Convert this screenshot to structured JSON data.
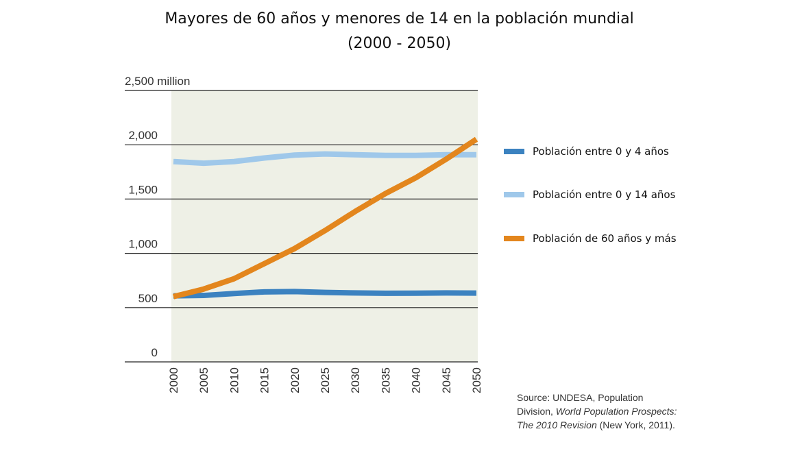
{
  "chart_data": {
    "type": "line",
    "title": "Mayores de 60 años y menores de 14 en la población mundial",
    "subtitle": "(2000 - 2050)",
    "xlabel": "",
    "ylabel": "",
    "x": [
      2000,
      2005,
      2010,
      2015,
      2020,
      2025,
      2030,
      2035,
      2040,
      2045,
      2050
    ],
    "x_tick_labels": [
      "2000",
      "2005",
      "2010",
      "2015",
      "2020",
      "2025",
      "2030",
      "2035",
      "2040",
      "2045",
      "2050"
    ],
    "ylim": [
      0,
      2500
    ],
    "y_ticks": [
      0,
      500,
      1000,
      1500,
      2000,
      2500
    ],
    "y_tick_labels": [
      "0",
      "500",
      "1,000",
      "1,500",
      "2,000",
      "2,500 million"
    ],
    "grid": "horizontal",
    "legend_position": "right",
    "series": [
      {
        "name": "Población entre 0 y 4 años",
        "color": "#3b82c0",
        "values": [
          608,
          612,
          630,
          645,
          648,
          640,
          635,
          632,
          633,
          635,
          634
        ]
      },
      {
        "name": "Población entre 0 y 14 años",
        "color": "#9fc8ea",
        "values": [
          1845,
          1830,
          1845,
          1878,
          1905,
          1915,
          1908,
          1902,
          1902,
          1908,
          1908
        ]
      },
      {
        "name": "Población de 60 años y más",
        "color": "#e3861d",
        "values": [
          601,
          671,
          766,
          905,
          1044,
          1209,
          1386,
          1551,
          1696,
          1867,
          2051
        ]
      }
    ]
  },
  "source": {
    "line1": "Source: UNDESA, Population",
    "line2_plain": "Division, ",
    "line2_italic": "World Population Prospects:",
    "line3_italic": "The 2010 Revision",
    "line3_plain": " (New York, 2011)."
  }
}
